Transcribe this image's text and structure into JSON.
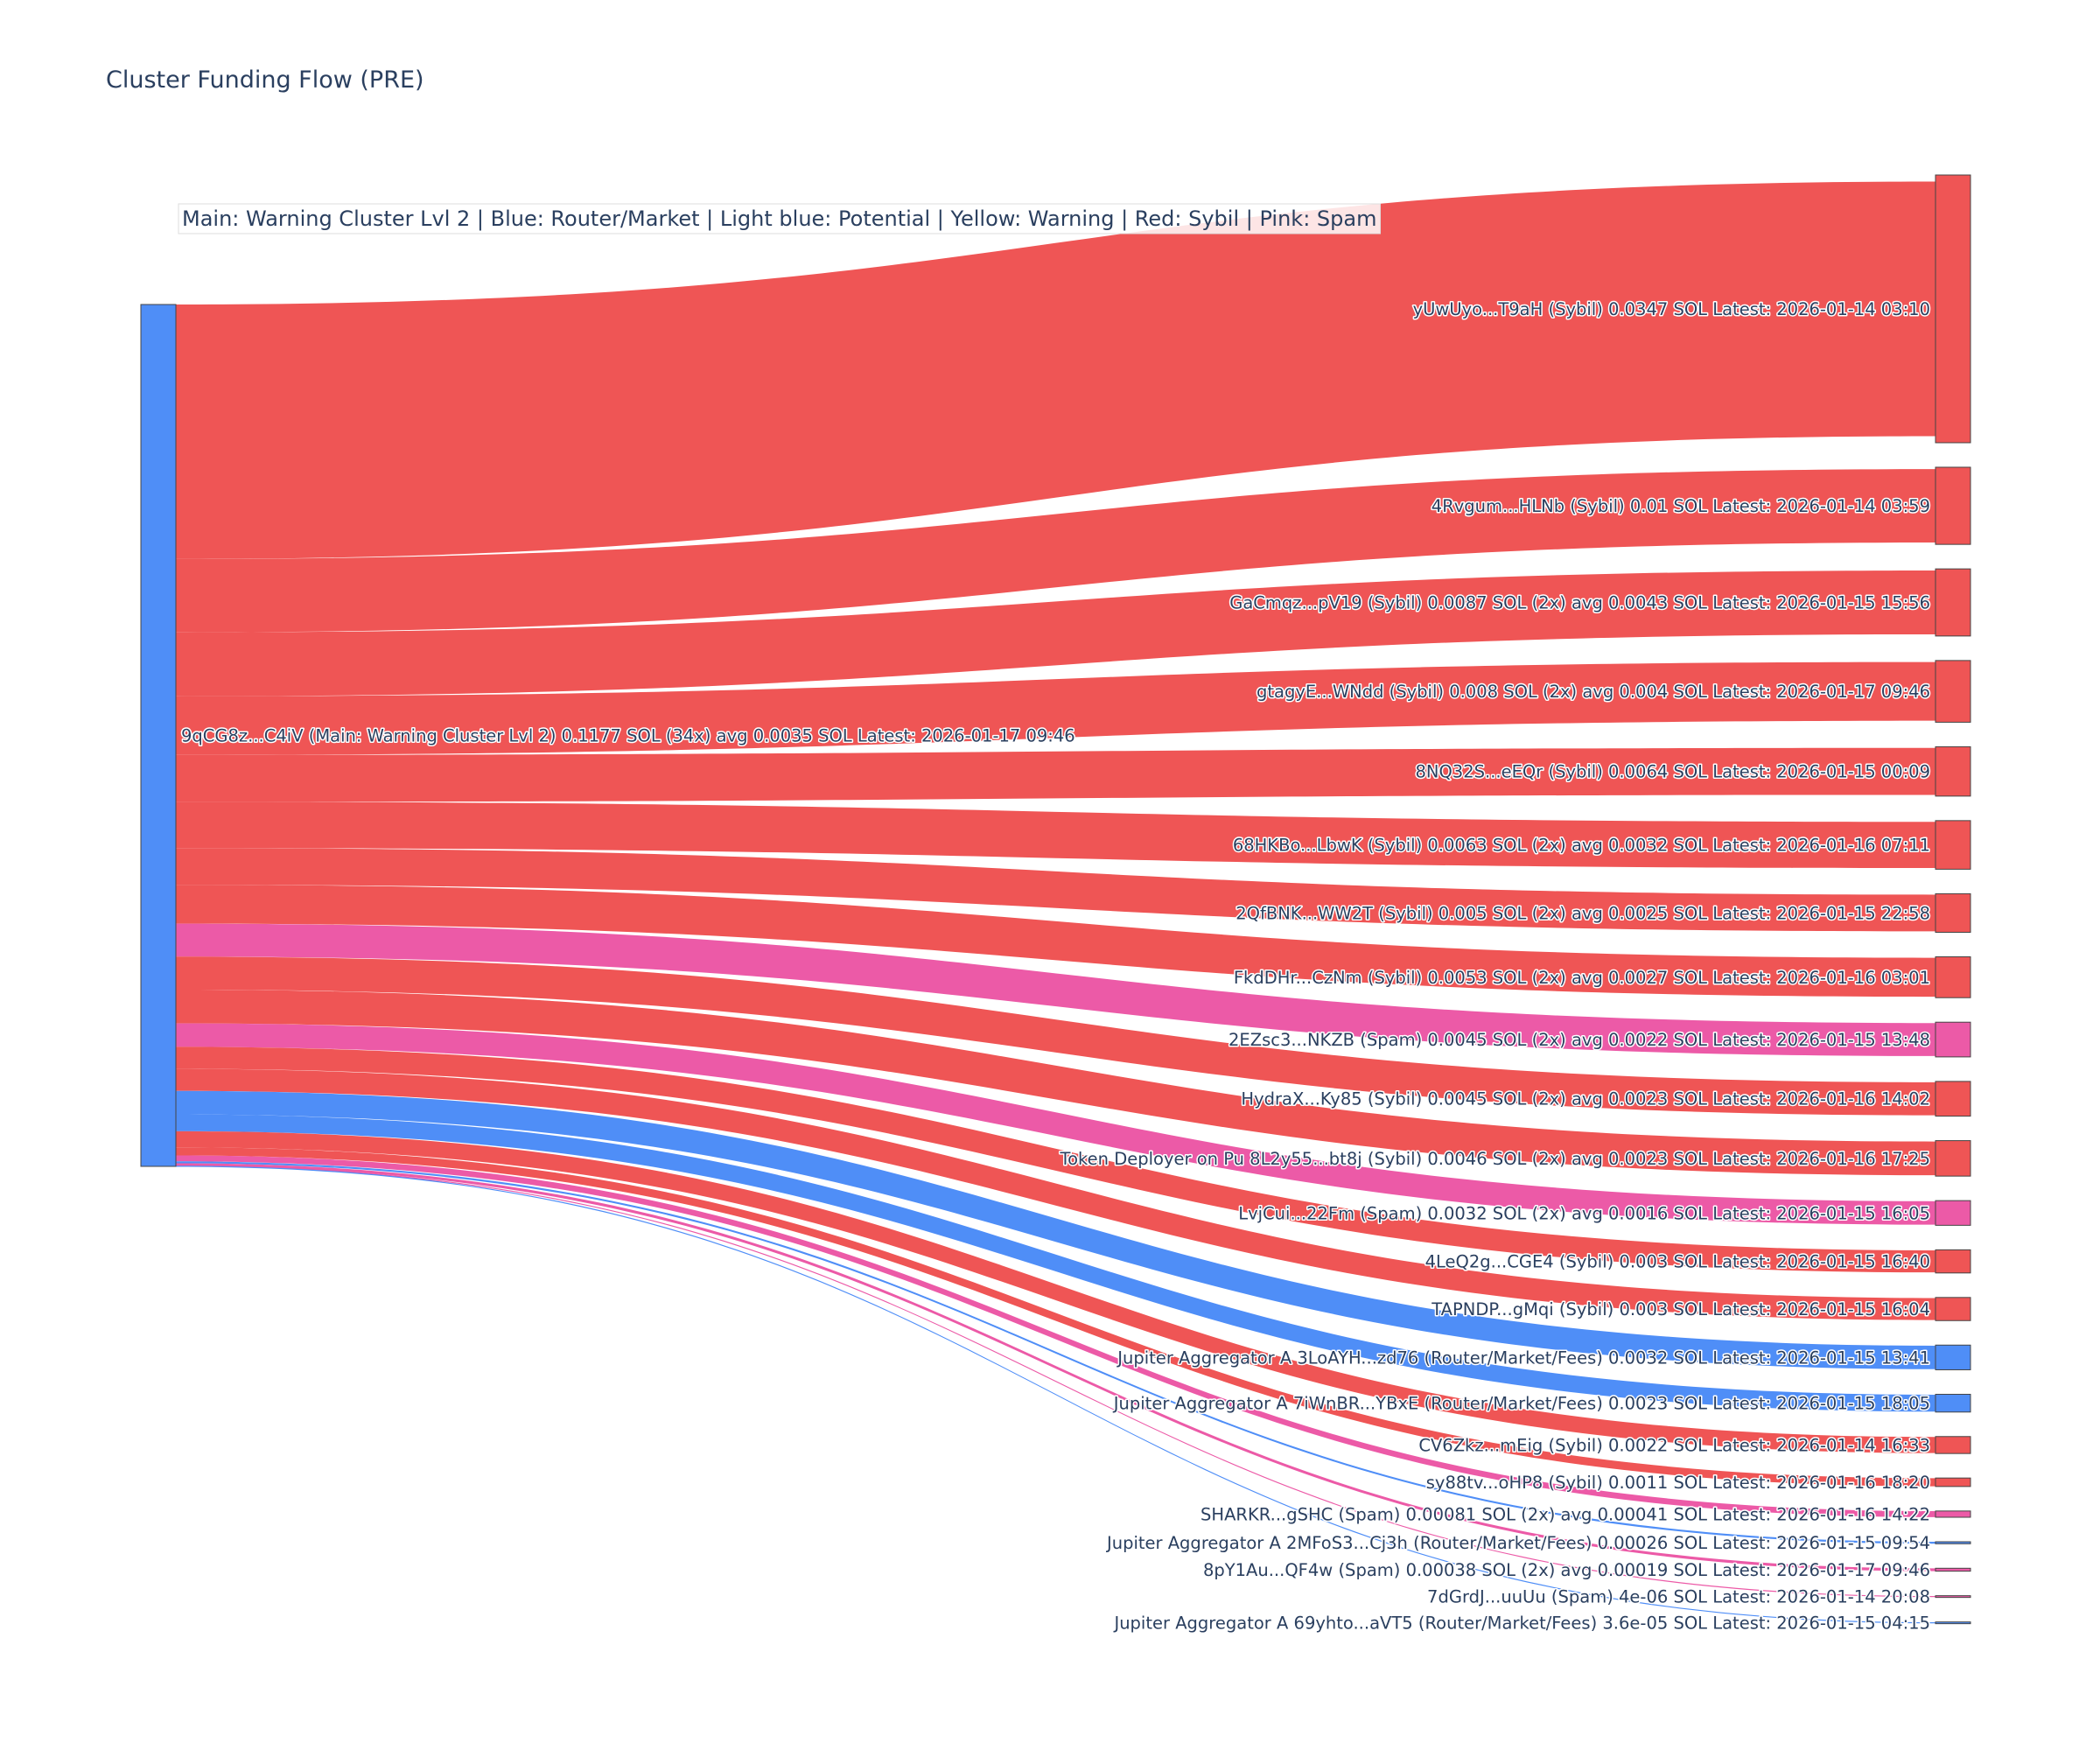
{
  "chart_data": {
    "type": "sankey",
    "title": "Cluster Funding Flow (PRE)",
    "annotation": "Main: Warning Cluster Lvl 2  |  Blue: Router/Market | Light blue: Potential | Yellow: Warning | Red: Sybil | Pink: Spam",
    "colors": {
      "router": "#4f8ef7",
      "sybil": "#ef5555",
      "spam": "#ec5aa7"
    },
    "source": {
      "label": "9qCG8z...C4iV (Main: Warning Cluster Lvl 2) 0.1177 SOL (34x) avg 0.0035 SOL Latest: 2026-01-17 09:46",
      "value": 0.1177,
      "category": "router"
    },
    "targets": [
      {
        "label": "yUwUyo...T9aH (Sybil) 0.0347 SOL Latest: 2026-01-14 03:10",
        "value": 0.0347,
        "category": "sybil"
      },
      {
        "label": "4Rvgum...HLNb (Sybil) 0.01 SOL Latest: 2026-01-14 03:59",
        "value": 0.01,
        "category": "sybil"
      },
      {
        "label": "GaCmqz...pV19 (Sybil) 0.0087 SOL (2x) avg 0.0043 SOL Latest: 2026-01-15 15:56",
        "value": 0.0087,
        "category": "sybil"
      },
      {
        "label": "gtagyE...WNdd (Sybil) 0.008 SOL (2x) avg 0.004 SOL Latest: 2026-01-17 09:46",
        "value": 0.008,
        "category": "sybil"
      },
      {
        "label": "8NQ32S...eEQr (Sybil) 0.0064 SOL Latest: 2026-01-15 00:09",
        "value": 0.0064,
        "category": "sybil"
      },
      {
        "label": "68HKBo...LbwK (Sybil) 0.0063 SOL (2x) avg 0.0032 SOL Latest: 2026-01-16 07:11",
        "value": 0.0063,
        "category": "sybil"
      },
      {
        "label": "2QfBNK...WW2T (Sybil) 0.005 SOL (2x) avg 0.0025 SOL Latest: 2026-01-15 22:58",
        "value": 0.005,
        "category": "sybil"
      },
      {
        "label": "FkdDHr...CzNm (Sybil) 0.0053 SOL (2x) avg 0.0027 SOL Latest: 2026-01-16 03:01",
        "value": 0.0053,
        "category": "sybil"
      },
      {
        "label": "2EZsc3...NKZB (Spam) 0.0045 SOL (2x) avg 0.0022 SOL Latest: 2026-01-15 13:48",
        "value": 0.0045,
        "category": "spam"
      },
      {
        "label": "HydraX...Ky85 (Sybil) 0.0045 SOL (2x) avg 0.0023 SOL Latest: 2026-01-16 14:02",
        "value": 0.0045,
        "category": "sybil"
      },
      {
        "label": "Token Deployer on Pu 8L2y55...bt8j (Sybil) 0.0046 SOL (2x) avg 0.0023 SOL Latest: 2026-01-16 17:25",
        "value": 0.0046,
        "category": "sybil"
      },
      {
        "label": "LvjCui...22Fm (Spam) 0.0032 SOL (2x) avg 0.0016 SOL Latest: 2026-01-15 16:05",
        "value": 0.0032,
        "category": "spam"
      },
      {
        "label": "4LeQ2g...CGE4 (Sybil) 0.003 SOL Latest: 2026-01-15 16:40",
        "value": 0.003,
        "category": "sybil"
      },
      {
        "label": "TAPNDP...gMqi (Sybil) 0.003 SOL Latest: 2026-01-15 16:04",
        "value": 0.003,
        "category": "sybil"
      },
      {
        "label": "Jupiter Aggregator A 3LoAYH...zd76 (Router/Market/Fees) 0.0032 SOL Latest: 2026-01-15 13:41",
        "value": 0.0032,
        "category": "router"
      },
      {
        "label": "Jupiter Aggregator A 7iWnBR...YBxE (Router/Market/Fees) 0.0023 SOL Latest: 2026-01-15 18:05",
        "value": 0.0023,
        "category": "router"
      },
      {
        "label": "CV6Zkz...mEig (Sybil) 0.0022 SOL Latest: 2026-01-14 16:33",
        "value": 0.0022,
        "category": "sybil"
      },
      {
        "label": "sy88tv...oHP8 (Sybil) 0.0011 SOL Latest: 2026-01-16 18:20",
        "value": 0.0011,
        "category": "sybil"
      },
      {
        "label": "SHARKR...gSHC (Spam) 0.00081 SOL (2x) avg 0.00041 SOL Latest: 2026-01-16 14:22",
        "value": 0.00081,
        "category": "spam"
      },
      {
        "label": "Jupiter Aggregator A 2MFoS3...Cj3h (Router/Market/Fees) 0.00026 SOL Latest: 2026-01-15 09:54",
        "value": 0.00026,
        "category": "router"
      },
      {
        "label": "8pY1Au...QF4w (Spam) 0.00038 SOL (2x) avg 0.00019 SOL Latest: 2026-01-17 09:46",
        "value": 0.00038,
        "category": "spam"
      },
      {
        "label": "7dGrdJ...uuUu (Spam) 4e-06 SOL Latest: 2026-01-14 20:08",
        "value": 4e-06,
        "category": "spam"
      },
      {
        "label": "Jupiter Aggregator A 69yhto...aVT5 (Router/Market/Fees) 3.6e-05 SOL Latest: 2026-01-15 04:15",
        "value": 3.6e-05,
        "category": "router"
      }
    ]
  }
}
